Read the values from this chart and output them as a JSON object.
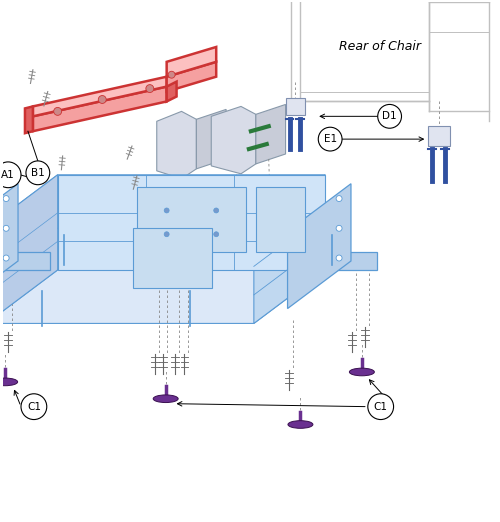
{
  "bg_color": "#ffffff",
  "blue": "#5b9bd5",
  "blue_light": "#dce8f8",
  "blue_mid": "#b8d0ea",
  "red": "#cc3333",
  "red_light": "#f5a0a0",
  "gray": "#999999",
  "gray_light": "#cccccc",
  "gray_bracket": "#b0b8c8",
  "purple": "#6a3090",
  "purple_light": "#9060b0",
  "green_screw": "#2a7a3a",
  "chair_gray": "#c0c0c0",
  "navy": "#3050a0",
  "figsize": [
    5.0,
    5.22
  ],
  "dpi": 100,
  "rear_of_chair": "Rear of Chair",
  "label_A1": "A1",
  "label_B1": "B1",
  "label_C1": "C1",
  "label_D1": "D1",
  "label_E1": "E1"
}
